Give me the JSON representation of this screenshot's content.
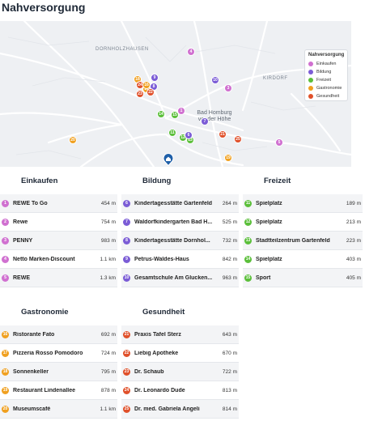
{
  "page": {
    "title": "Nahversorgung"
  },
  "colors": {
    "einkaufen": "#d070d0",
    "bildung": "#7b5cd6",
    "freizeit": "#5bbf3a",
    "gastronomie": "#f0a020",
    "gesundheit": "#e0502a",
    "home": "#1f5fa8"
  },
  "map": {
    "places": {
      "dornholzhausen": "DORNHOLZHAUSEN",
      "kirdorf": "KIRDORF",
      "bad_homburg": "Bad Homburg vor der Höhe"
    },
    "home_icon": "home-icon",
    "legend": {
      "title": "Nahversorgung",
      "items": [
        {
          "label": "Einkaufen",
          "color": "#d070d0"
        },
        {
          "label": "Bildung",
          "color": "#7b5cd6"
        },
        {
          "label": "Freizeit",
          "color": "#5bbf3a"
        },
        {
          "label": "Gastronomie",
          "color": "#f0a020"
        },
        {
          "label": "Gesundheit",
          "color": "#e0502a"
        }
      ]
    },
    "markers": [
      {
        "num": "4",
        "category": "einkaufen"
      },
      {
        "num": "10",
        "category": "bildung"
      },
      {
        "num": "3",
        "category": "einkaufen"
      },
      {
        "num": "18",
        "category": "gastronomie"
      },
      {
        "num": "9",
        "category": "bildung"
      },
      {
        "num": "24",
        "category": "gesundheit"
      },
      {
        "num": "8",
        "category": "bildung"
      },
      {
        "num": "17",
        "category": "gastronomie"
      },
      {
        "num": "22",
        "category": "gesundheit"
      },
      {
        "num": "23",
        "category": "gesundheit"
      },
      {
        "num": "16",
        "category": "gastronomie"
      },
      {
        "num": "14",
        "category": "freizeit"
      },
      {
        "num": "15",
        "category": "freizeit"
      },
      {
        "num": "1",
        "category": "einkaufen"
      },
      {
        "num": "7",
        "category": "bildung"
      },
      {
        "num": "11",
        "category": "freizeit"
      },
      {
        "num": "12",
        "category": "freizeit"
      },
      {
        "num": "13",
        "category": "freizeit"
      },
      {
        "num": "6",
        "category": "bildung"
      },
      {
        "num": "21",
        "category": "gesundheit"
      },
      {
        "num": "25",
        "category": "gesundheit"
      },
      {
        "num": "5",
        "category": "einkaufen"
      },
      {
        "num": "20",
        "category": "gastronomie"
      },
      {
        "num": "19",
        "category": "gastronomie"
      }
    ]
  },
  "sections": {
    "einkaufen": {
      "title": "Einkaufen",
      "items": [
        {
          "num": "1",
          "name": "REWE To Go",
          "dist": "454 m"
        },
        {
          "num": "2",
          "name": "Rewe",
          "dist": "754 m"
        },
        {
          "num": "3",
          "name": "PENNY",
          "dist": "983 m"
        },
        {
          "num": "4",
          "name": "Netto Marken-Discount",
          "dist": "1.1 km"
        },
        {
          "num": "5",
          "name": "REWE",
          "dist": "1.3 km"
        }
      ]
    },
    "bildung": {
      "title": "Bildung",
      "items": [
        {
          "num": "6",
          "name": "Kindertagesstätte Gartenfeld",
          "dist": "264 m"
        },
        {
          "num": "7",
          "name": "Waldorfkindergarten Bad H...",
          "dist": "525 m"
        },
        {
          "num": "8",
          "name": "Kindertagesstätte Dornhol...",
          "dist": "732 m"
        },
        {
          "num": "9",
          "name": "Petrus-Waldes-Haus",
          "dist": "842 m"
        },
        {
          "num": "10",
          "name": "Gesamtschule Am Glucken...",
          "dist": "963 m"
        }
      ]
    },
    "freizeit": {
      "title": "Freizeit",
      "items": [
        {
          "num": "11",
          "name": "Spielplatz",
          "dist": "189 m"
        },
        {
          "num": "12",
          "name": "Spielplatz",
          "dist": "213 m"
        },
        {
          "num": "13",
          "name": "Stadtteilzentrum Gartenfeld",
          "dist": "223 m"
        },
        {
          "num": "14",
          "name": "Spielplatz",
          "dist": "403 m"
        },
        {
          "num": "15",
          "name": "Sport",
          "dist": "405 m"
        }
      ]
    },
    "gastronomie": {
      "title": "Gastronomie",
      "items": [
        {
          "num": "16",
          "name": "Ristorante Fato",
          "dist": "692 m"
        },
        {
          "num": "17",
          "name": "Pizzeria Rosso Pomodoro",
          "dist": "724 m"
        },
        {
          "num": "18",
          "name": "Sonnenkeller",
          "dist": "795 m"
        },
        {
          "num": "19",
          "name": "Restaurant Lindenallee",
          "dist": "878 m"
        },
        {
          "num": "20",
          "name": "Museumscafé",
          "dist": "1.1 km"
        }
      ]
    },
    "gesundheit": {
      "title": "Gesundheit",
      "items": [
        {
          "num": "21",
          "name": "Praxis Tafel Sterz",
          "dist": "643 m"
        },
        {
          "num": "22",
          "name": "Liebig Apotheke",
          "dist": "670 m"
        },
        {
          "num": "23",
          "name": "Dr. Schaub",
          "dist": "722 m"
        },
        {
          "num": "24",
          "name": "Dr. Leonardo Dude",
          "dist": "813 m"
        },
        {
          "num": "25",
          "name": "Dr. med. Gabriela Angeli",
          "dist": "814 m"
        }
      ]
    }
  }
}
